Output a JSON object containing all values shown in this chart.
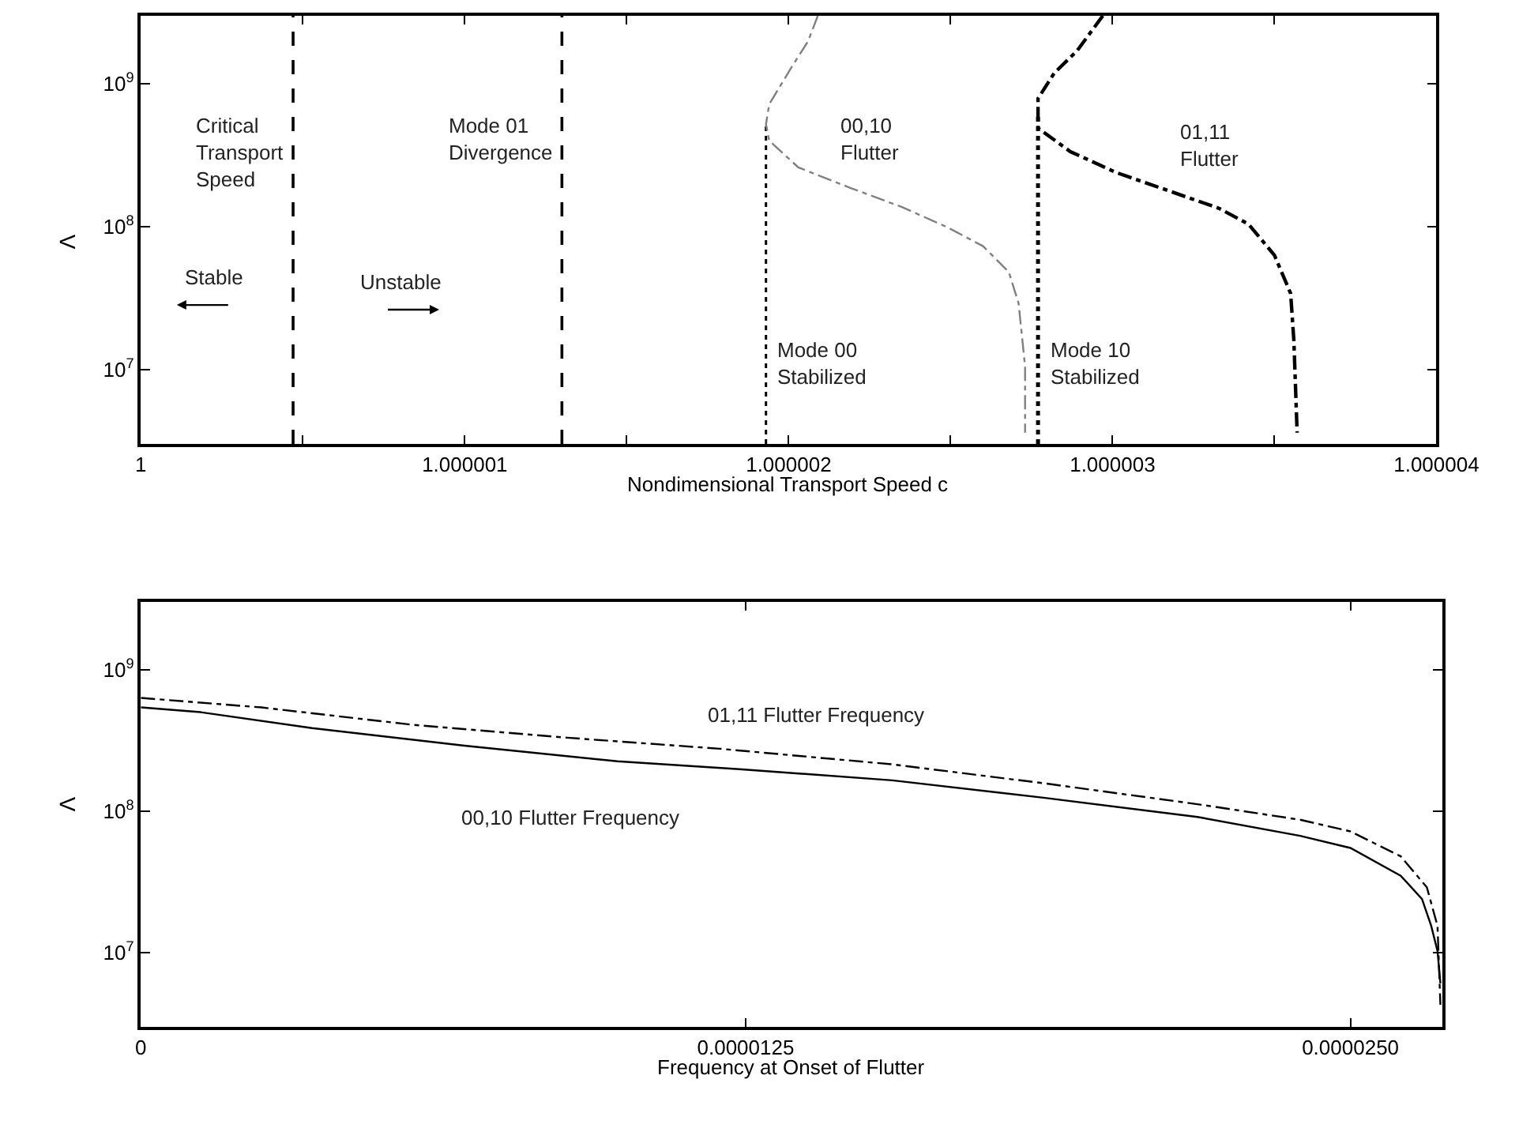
{
  "chart_data": [
    {
      "type": "line",
      "xlabel": "Nondimensional Transport Speed c",
      "ylabel": "Λ",
      "log": "y",
      "marker": "none",
      "xlim": [
        1,
        1.000004
      ],
      "xticks": [
        1,
        {
          "value": 1.0000005,
          "label": null
        },
        1.000001,
        {
          "value": 1.0000015,
          "label": null
        },
        1.000002,
        {
          "value": 1.0000025,
          "label": null
        },
        1.000003,
        {
          "value": 1.0000035,
          "label": null
        },
        1.000004
      ],
      "ylim": [
        3000000,
        3000000000
      ],
      "yticks": [
        {
          "value": 10000000,
          "label": "10$^{7}$"
        },
        {
          "value": 100000000,
          "label": "10$^{8}$"
        },
        {
          "value": 1000000000,
          "label": "10$^{9}$"
        }
      ],
      "series": [
        {
          "line_style": "dotted",
          "color": "#000000",
          "x": [
            1.00000193,
            1.00000193
          ],
          "values": [
            3000000,
            520000000
          ]
        },
        {
          "line_style": "dashdot",
          "color": "#808080",
          "x": [
            1.00000209,
            1.00000206,
            1.00000201,
            1.00000194,
            1.00000193,
            1.00000194,
            1.00000203,
            1.00000219,
            1.00000235,
            1.00000249,
            1.0000026,
            1.00000268,
            1.00000271,
            1.00000273,
            1.00000273
          ],
          "values": [
            3000000000,
            1990000000,
            1320000000,
            720000000,
            520000000,
            400000000,
            260000000,
            187000000,
            137000000,
            99000000,
            73000000,
            48000000,
            29000000,
            10500000,
            3600000
          ]
        },
        {
          "line_style": "dotted",
          "color": "#000000",
          "x": [
            1.00000277,
            1.00000277
          ],
          "values": [
            3000000,
            630000000
          ]
        },
        {
          "line_style": "dashdot",
          "color": "#000000",
          "x": [
            1.00000297,
            1.00000289,
            1.00000282,
            1.00000277,
            1.00000277,
            1.00000277,
            1.00000287,
            1.00000301,
            1.00000319,
            1.00000333,
            1.00000342,
            1.0000035,
            1.00000355,
            1.00000356,
            1.00000357
          ],
          "values": [
            3000000000,
            1700000000,
            1190000000,
            790000000,
            630000000,
            490000000,
            335000000,
            240000000,
            173000000,
            134000000,
            104000000,
            63000000,
            34000000,
            15800000,
            3600000
          ]
        }
      ],
      "ref_lines": [
        {
          "axis": "x",
          "value": 1.00000047,
          "label": "Critical\nTransport\nSpeed",
          "line_style": "dashed",
          "color": "#000000"
        },
        {
          "axis": "x",
          "value": 1.0000013,
          "label": "Mode 01\nDivergence",
          "line_style": "dashed",
          "color": "#000000"
        }
      ],
      "annotations": [
        "Stable",
        "Unstable",
        "00,10\nFlutter",
        "01,11\nFlutter",
        "Mode 00\nStabilized",
        "Mode 10\nStabilized"
      ]
    },
    {
      "type": "line",
      "xlabel": "Frequency at Onset of Flutter",
      "ylabel": "Λ",
      "log": "y",
      "marker": "none",
      "xlim": [
        0,
        2.69e-05
      ],
      "xticks": [
        {
          "value": 0,
          "label": "0"
        },
        {
          "value": 1.25e-05,
          "label": "0.0000125"
        },
        {
          "value": 2.5e-05,
          "label": "0.0000250"
        }
      ],
      "ylim": [
        3000000,
        3000000000
      ],
      "yticks": [
        {
          "value": 10000000,
          "label": "10$^{7}$"
        },
        {
          "value": 100000000,
          "label": "10$^{8}$"
        },
        {
          "value": 1000000000,
          "label": "10$^{9}$"
        }
      ],
      "series": [
        {
          "line_style": "solid",
          "color": "#000000",
          "x": [
            0,
            1.23e-06,
            3.54e-06,
            6.69e-06,
            9.85e-06,
            1.237e-05,
            1.553e-05,
            1.869e-05,
            2.184e-05,
            2.396e-05,
            2.5e-05,
            2.604e-05,
            2.648e-05,
            2.667e-05,
            2.68e-05,
            2.686e-05
          ],
          "values": [
            540000000,
            500000000,
            386000000,
            290000000,
            225000000,
            198000000,
            165000000,
            124000000,
            91000000,
            67000000,
            55000000,
            35000000,
            24000000,
            15500000,
            10300000,
            6100000
          ]
        },
        {
          "line_style": "dashdot",
          "color": "#000000",
          "x": [
            0,
            2.49e-06,
            5.65e-06,
            8.81e-06,
            1.196e-05,
            1.553e-05,
            1.869e-05,
            2.184e-05,
            2.396e-05,
            2.5e-05,
            2.604e-05,
            2.658e-05,
            2.68e-05,
            2.686e-05
          ],
          "values": [
            630000000,
            540000000,
            406000000,
            330000000,
            276000000,
            214000000,
            157000000,
            112000000,
            87000000,
            72000000,
            48000000,
            29000000,
            15500000,
            4300000
          ]
        }
      ],
      "annotations": [
        "01,11 Flutter Frequency",
        "00,10 Flutter Frequency"
      ]
    }
  ]
}
